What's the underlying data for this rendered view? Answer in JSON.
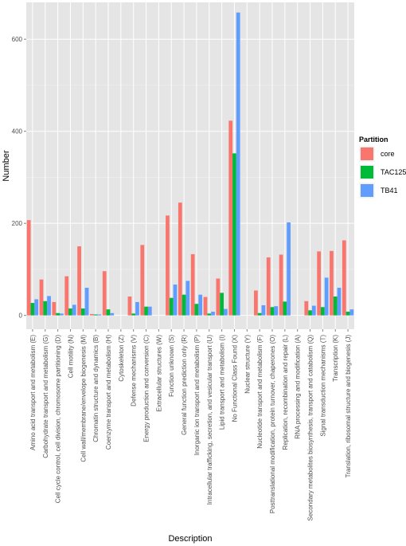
{
  "chart_data": {
    "type": "bar",
    "xlabel": "Description",
    "ylabel": "Number",
    "ylim": [
      -30,
      680
    ],
    "yticks": [
      0,
      200,
      400,
      600
    ],
    "grid": true,
    "legend_position": "right",
    "legend_title": "Partition",
    "categories": [
      "Amino acid transport and metabolism (E)",
      "Carbohydrate transport and metabolism (G)",
      "Cell cycle control, cell division, chromosome partitioning (D)",
      "Cell motility (N)",
      "Cell wall/membrane/envelope biogenesis (M)",
      "Chromatin structure and dynamics (B)",
      "Coenzyme transport and metabolism (H)",
      "Cytoskeleton (Z)",
      "Defense mechanisms (V)",
      "Energy production and conversion (C)",
      "Extracellular structures (W)",
      "Function unknown (S)",
      "General function prediction only (R)",
      "Inorganic ion transport and metabolism (P)",
      "Intracellular trafficking, secretion, and vesicular transport (U)",
      "Lipid transport and metabolism (I)",
      "No Functional Class Found (X)",
      "Nuclear structure (Y)",
      "Nucleotide transport and metabolism (F)",
      "Posttranslational modification, protein turnover, chaperones (O)",
      "Replication, recombination and repair (L)",
      "RNA processing and modification (A)",
      "Secondary metabolites biosynthesis, transport and catabolism (Q)",
      "Signal transduction mechanisms (T)",
      "Transcription (K)",
      "Translation, ribosomal structure and biogenesis (J)"
    ],
    "series": [
      {
        "name": "core",
        "color": "#F8766D",
        "values": [
          207,
          78,
          29,
          85,
          150,
          3,
          96,
          0,
          41,
          153,
          0,
          217,
          245,
          133,
          40,
          80,
          423,
          0,
          54,
          126,
          132,
          0,
          31,
          139,
          140,
          163
        ]
      },
      {
        "name": "TAC125",
        "color": "#00BA38",
        "values": [
          27,
          31,
          5,
          15,
          15,
          2,
          13,
          0,
          4,
          19,
          0,
          38,
          45,
          25,
          4,
          49,
          352,
          0,
          5,
          18,
          30,
          0,
          11,
          18,
          41,
          8
        ]
      },
      {
        "name": "TB41",
        "color": "#619CFF",
        "values": [
          35,
          42,
          4,
          23,
          60,
          2,
          5,
          0,
          29,
          19,
          0,
          67,
          75,
          45,
          8,
          14,
          658,
          0,
          22,
          20,
          202,
          0,
          21,
          82,
          60,
          13
        ]
      }
    ]
  }
}
